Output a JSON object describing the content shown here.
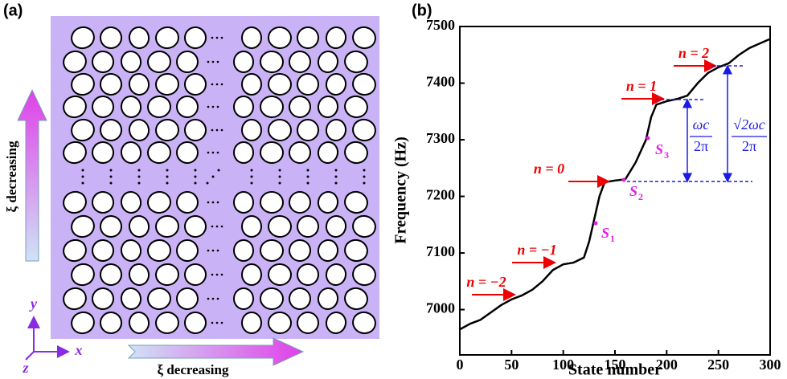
{
  "panel_a": {
    "label": "(a)",
    "vertical_arrow": "ξ decreasing",
    "horizontal_arrow": "ξ decreasing",
    "axes": {
      "x": "x",
      "y": "y",
      "z": "z"
    }
  },
  "chart_data": {
    "type": "line",
    "panel_label": "(b)",
    "xlabel": "State number",
    "ylabel": "Frequency (Hz)",
    "color": "#000000",
    "x": [
      0,
      10,
      20,
      30,
      40,
      50,
      60,
      70,
      80,
      90,
      100,
      110,
      120,
      125,
      130,
      135,
      140,
      150,
      160,
      170,
      180,
      185,
      190,
      200,
      210,
      220,
      230,
      240,
      250,
      260,
      270,
      280,
      290,
      300
    ],
    "values": [
      6965,
      6975,
      6982,
      6995,
      7008,
      7018,
      7025,
      7035,
      7050,
      7070,
      7080,
      7083,
      7092,
      7120,
      7160,
      7200,
      7225,
      7228,
      7230,
      7260,
      7300,
      7340,
      7362,
      7368,
      7372,
      7378,
      7400,
      7418,
      7428,
      7435,
      7450,
      7462,
      7470,
      7478
    ],
    "xlim": [
      0,
      300
    ],
    "xticks": [
      0,
      50,
      100,
      150,
      200,
      250,
      300
    ],
    "ylim": [
      6920,
      7500
    ],
    "yticks": [
      7000,
      7100,
      7200,
      7300,
      7400,
      7500
    ],
    "annotations": {
      "levels": [
        "n = −2",
        "n = −1",
        "n = 0",
        "n = 1",
        "n = 2"
      ],
      "states": [
        {
          "letter": "S",
          "sub": "1"
        },
        {
          "letter": "S",
          "sub": "2"
        },
        {
          "letter": "S",
          "sub": "3"
        }
      ],
      "gaps": [
        {
          "num": "ωc",
          "den": "2π"
        },
        {
          "num": "√2ωc",
          "den": "2π"
        }
      ]
    }
  }
}
